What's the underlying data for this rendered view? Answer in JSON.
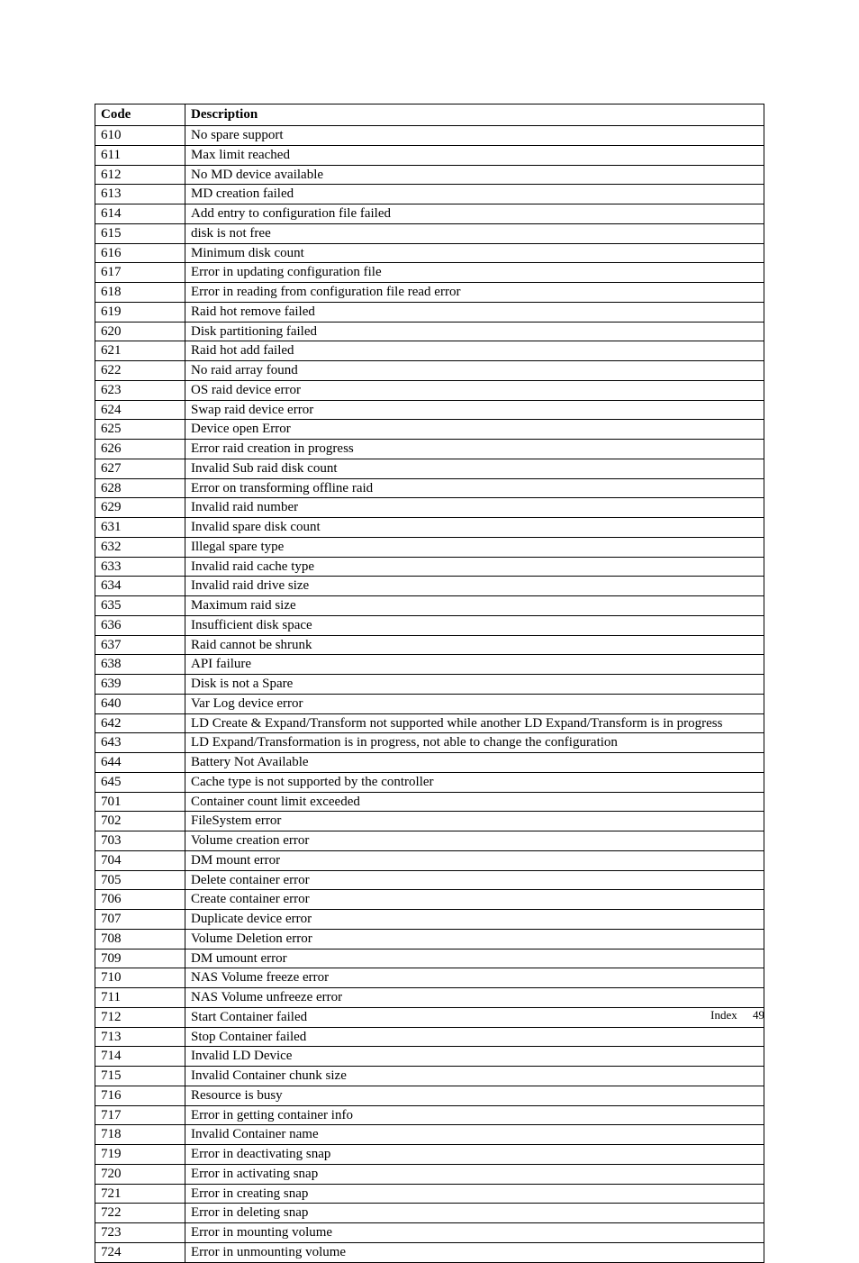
{
  "table": {
    "columns": [
      "Code",
      "Description"
    ],
    "rows": [
      [
        "610",
        "No spare support"
      ],
      [
        "611",
        "Max limit reached"
      ],
      [
        "612",
        "No MD device available"
      ],
      [
        "613",
        "MD creation failed"
      ],
      [
        "614",
        "Add entry to configuration file failed"
      ],
      [
        "615",
        "disk is not free"
      ],
      [
        "616",
        "Minimum disk count"
      ],
      [
        "617",
        "Error in updating configuration file"
      ],
      [
        "618",
        "Error in reading from configuration file read error"
      ],
      [
        "619",
        "Raid hot remove failed"
      ],
      [
        "620",
        "Disk partitioning failed"
      ],
      [
        "621",
        "Raid hot add failed"
      ],
      [
        "622",
        "No raid array found"
      ],
      [
        "623",
        "OS raid device error"
      ],
      [
        "624",
        "Swap raid device error"
      ],
      [
        "625",
        "Device open Error"
      ],
      [
        "626",
        "Error raid creation in progress"
      ],
      [
        "627",
        "Invalid Sub raid disk count"
      ],
      [
        "628",
        "Error on transforming offline raid"
      ],
      [
        "629",
        "Invalid raid number"
      ],
      [
        "631",
        "Invalid spare disk count"
      ],
      [
        "632",
        "Illegal spare type"
      ],
      [
        "633",
        "Invalid raid cache type"
      ],
      [
        "634",
        "Invalid raid drive size"
      ],
      [
        "635",
        "Maximum raid size"
      ],
      [
        "636",
        "Insufficient disk space"
      ],
      [
        "637",
        "Raid cannot be shrunk"
      ],
      [
        "638",
        "API failure"
      ],
      [
        "639",
        "Disk is not a Spare"
      ],
      [
        "640",
        "Var Log device error"
      ],
      [
        "642",
        "LD Create & Expand/Transform not supported while another LD Expand/Transform is in progress"
      ],
      [
        "643",
        "LD Expand/Transformation is in progress, not able to change the configuration"
      ],
      [
        "644",
        "Battery Not Available"
      ],
      [
        "645",
        "Cache type is not supported by the controller"
      ],
      [
        "701",
        "Container count limit exceeded"
      ],
      [
        "702",
        "FileSystem error"
      ],
      [
        "703",
        "Volume creation error"
      ],
      [
        "704",
        "DM mount error"
      ],
      [
        "705",
        "Delete container error"
      ],
      [
        "706",
        "Create container error"
      ],
      [
        "707",
        "Duplicate device error"
      ],
      [
        "708",
        "Volume Deletion error"
      ],
      [
        "709",
        "DM umount error"
      ],
      [
        "710",
        "NAS Volume freeze error"
      ],
      [
        "711",
        "NAS Volume unfreeze error"
      ],
      [
        "712",
        "Start Container failed"
      ],
      [
        "713",
        "Stop Container failed"
      ],
      [
        "714",
        "Invalid LD Device"
      ],
      [
        "715",
        "Invalid Container chunk size"
      ],
      [
        "716",
        "Resource is busy"
      ],
      [
        "717",
        "Error in getting container info"
      ],
      [
        "718",
        "Invalid Container name"
      ],
      [
        "719",
        "Error in deactivating snap"
      ],
      [
        "720",
        "Error in activating snap"
      ],
      [
        "721",
        "Error in creating snap"
      ],
      [
        "722",
        "Error in deleting snap"
      ],
      [
        "723",
        "Error in mounting volume"
      ],
      [
        "724",
        "Error in unmounting volume"
      ]
    ]
  },
  "footer": {
    "label": "Index",
    "page": "49"
  }
}
